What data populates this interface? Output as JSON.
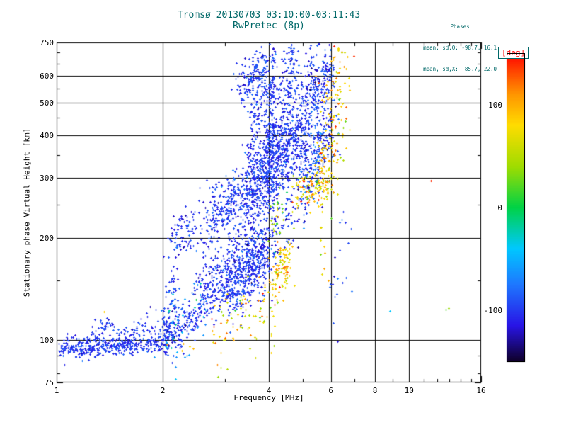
{
  "header": {
    "title_line1": "Tromsø 20130703 03:10:00-03:11:43",
    "title_line2": "RwPretec (8p)",
    "phases_title": "Phases",
    "phases_line1": "mean, sd,O: -98.7, 16.1",
    "phases_line2": "mean, sd,X:  85.7, 22.0"
  },
  "colors": {
    "title_text": "#006868",
    "axis": "#000000",
    "deg_label_text": "#ff0000",
    "deg_box_border": "#006868",
    "background": "#ffffff"
  },
  "chart_data": {
    "type": "scatter",
    "title": "Tromsø 20130703 03:10:00-03:11:43 / RwPretec (8p)",
    "xlabel": "Frequency [MHz]",
    "ylabel": "Stationary phase Virtual Height [km]",
    "x_scale": "log",
    "y_scale": "log",
    "xlim": [
      1,
      16
    ],
    "ylim": [
      75,
      750
    ],
    "x_ticks": [
      1,
      2,
      4,
      6,
      8,
      10,
      16
    ],
    "y_ticks": [
      75,
      100,
      200,
      300,
      400,
      500,
      600,
      750
    ],
    "x_gridlines": [
      2,
      4,
      6,
      8,
      10
    ],
    "y_gridlines": [
      100,
      200,
      300,
      400,
      500,
      600
    ],
    "x_minor_ticks": [
      3,
      5,
      7,
      9,
      11,
      12,
      13,
      14,
      15
    ],
    "y_minor_ticks": [
      80,
      90,
      150,
      250,
      350,
      450,
      550,
      650,
      700
    ],
    "grid": true,
    "legend": "colorbar-right",
    "colorbar": {
      "label": "[deg]",
      "range": [
        -150,
        150
      ],
      "ticks": [
        100,
        0,
        -100
      ],
      "stops": [
        {
          "v": -150,
          "rgb": [
            15,
            0,
            40
          ]
        },
        {
          "v": -115,
          "rgb": [
            40,
            20,
            230
          ]
        },
        {
          "v": -75,
          "rgb": [
            30,
            120,
            255
          ]
        },
        {
          "v": -40,
          "rgb": [
            0,
            200,
            255
          ]
        },
        {
          "v": 0,
          "rgb": [
            0,
            210,
            70
          ]
        },
        {
          "v": 40,
          "rgb": [
            160,
            220,
            0
          ]
        },
        {
          "v": 80,
          "rgb": [
            255,
            220,
            0
          ]
        },
        {
          "v": 110,
          "rgb": [
            255,
            150,
            0
          ]
        },
        {
          "v": 135,
          "rgb": [
            255,
            60,
            0
          ]
        },
        {
          "v": 150,
          "rgb": [
            255,
            0,
            0
          ]
        }
      ]
    },
    "scatter_fields": [
      "f_start_mhz",
      "f_end_mhz",
      "h_start_km",
      "h_end_km",
      "n_points",
      "f_jitter_log",
      "h_jitter_log",
      "phase_mean_deg",
      "phase_sd_deg"
    ],
    "scatter_clusters": [
      [
        1.0,
        2.05,
        93,
        99,
        380,
        0.004,
        0.012,
        -100,
        10
      ],
      [
        1.05,
        1.6,
        100,
        104,
        60,
        0.004,
        0.01,
        -100,
        10
      ],
      [
        1.26,
        1.45,
        107,
        113,
        30,
        0.004,
        0.012,
        -100,
        12
      ],
      [
        1.6,
        1.95,
        104,
        112,
        40,
        0.008,
        0.02,
        -100,
        12
      ],
      [
        2.0,
        2.5,
        100,
        120,
        150,
        0.01,
        0.03,
        -100,
        12
      ],
      [
        2.02,
        2.18,
        112,
        140,
        70,
        0.006,
        0.05,
        -100,
        12
      ],
      [
        2.5,
        3.2,
        130,
        160,
        250,
        0.012,
        0.05,
        -100,
        12
      ],
      [
        3.0,
        3.9,
        140,
        175,
        350,
        0.012,
        0.05,
        -100,
        12
      ],
      [
        3.3,
        4.0,
        165,
        185,
        150,
        0.01,
        0.04,
        -100,
        12
      ],
      [
        2.1,
        2.45,
        195,
        218,
        80,
        0.008,
        0.03,
        -100,
        12
      ],
      [
        2.5,
        3.2,
        205,
        255,
        100,
        0.015,
        0.05,
        -100,
        12
      ],
      [
        3.2,
        4.0,
        200,
        250,
        80,
        0.02,
        0.05,
        -100,
        12
      ],
      [
        4.1,
        4.8,
        185,
        245,
        60,
        0.012,
        0.05,
        -100,
        12
      ],
      [
        2.8,
        4.4,
        240,
        305,
        400,
        0.015,
        0.045,
        -100,
        12
      ],
      [
        3.5,
        5.0,
        300,
        420,
        500,
        0.015,
        0.05,
        -100,
        12
      ],
      [
        5.0,
        6.0,
        280,
        440,
        250,
        0.012,
        0.06,
        -95,
        18
      ],
      [
        3.95,
        4.15,
        310,
        640,
        180,
        0.004,
        0.09,
        -100,
        12
      ],
      [
        4.3,
        4.7,
        440,
        660,
        150,
        0.008,
        0.06,
        -100,
        12
      ],
      [
        4.8,
        5.4,
        360,
        640,
        200,
        0.01,
        0.07,
        -100,
        12
      ],
      [
        3.3,
        3.9,
        540,
        640,
        150,
        0.01,
        0.03,
        -100,
        12
      ],
      [
        5.4,
        6.0,
        510,
        660,
        120,
        0.008,
        0.04,
        -100,
        14
      ],
      [
        3.5,
        4.0,
        420,
        560,
        100,
        0.008,
        0.05,
        -100,
        12
      ],
      [
        5.5,
        6.6,
        270,
        650,
        180,
        0.01,
        0.12,
        85,
        25
      ],
      [
        4.7,
        6.0,
        270,
        300,
        120,
        0.012,
        0.03,
        80,
        30
      ],
      [
        4.0,
        4.4,
        200,
        245,
        30,
        0.01,
        0.04,
        35,
        30
      ],
      [
        2.8,
        4.4,
        105,
        140,
        100,
        0.02,
        0.06,
        80,
        30
      ],
      [
        4.1,
        4.5,
        150,
        180,
        90,
        0.01,
        0.04,
        85,
        20
      ],
      [
        2.0,
        2.6,
        95,
        130,
        40,
        0.015,
        0.06,
        -45,
        20
      ],
      [
        6.0,
        6.6,
        140,
        210,
        20,
        0.01,
        0.1,
        -100,
        15
      ],
      [
        11.5,
        11.5,
        294,
        294,
        1,
        0.0,
        0.0,
        140,
        0
      ],
      [
        8.8,
        8.8,
        122,
        122,
        1,
        0.0,
        0.0,
        -40,
        0
      ],
      [
        12.9,
        12.9,
        124,
        124,
        2,
        0.004,
        0.01,
        25,
        10
      ],
      [
        2.05,
        2.45,
        94,
        97,
        5,
        0.01,
        0.01,
        85,
        10
      ],
      [
        1.36,
        1.36,
        121,
        121,
        1,
        0.0,
        0.0,
        85,
        0
      ]
    ]
  }
}
